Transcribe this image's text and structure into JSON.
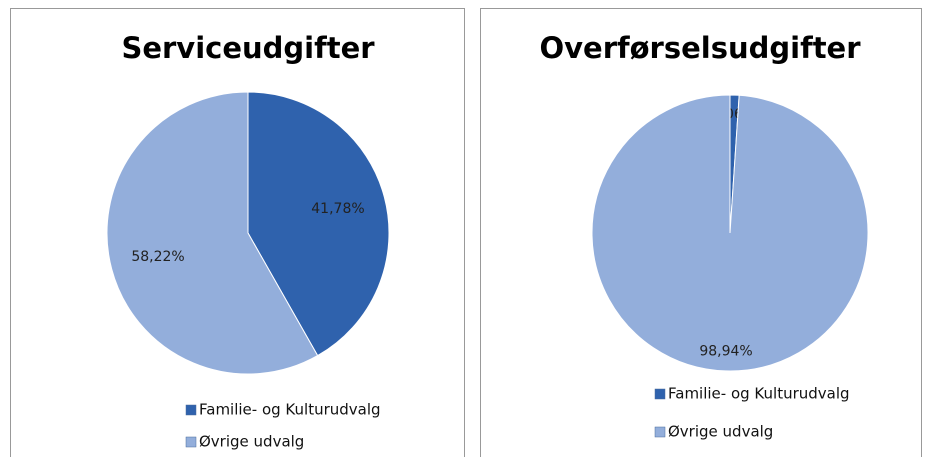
{
  "chart_data": [
    {
      "type": "pie",
      "title": "Serviceudgifter",
      "categories": [
        "Familie- og Kulturudvalg",
        "Øvrige udvalg"
      ],
      "values": [
        41.78,
        58.22
      ],
      "value_labels": [
        "41,78%",
        "58,22%"
      ],
      "colors": [
        "#2f62ad",
        "#93aedb"
      ]
    },
    {
      "type": "pie",
      "title": "Overførselsudgifter",
      "categories": [
        "Familie- og Kulturudvalg",
        "Øvrige udvalg"
      ],
      "values": [
        1.06,
        98.94
      ],
      "value_labels": [
        "1,06%",
        "98,94%"
      ],
      "colors": [
        "#2f62ad",
        "#93aedb"
      ]
    }
  ]
}
